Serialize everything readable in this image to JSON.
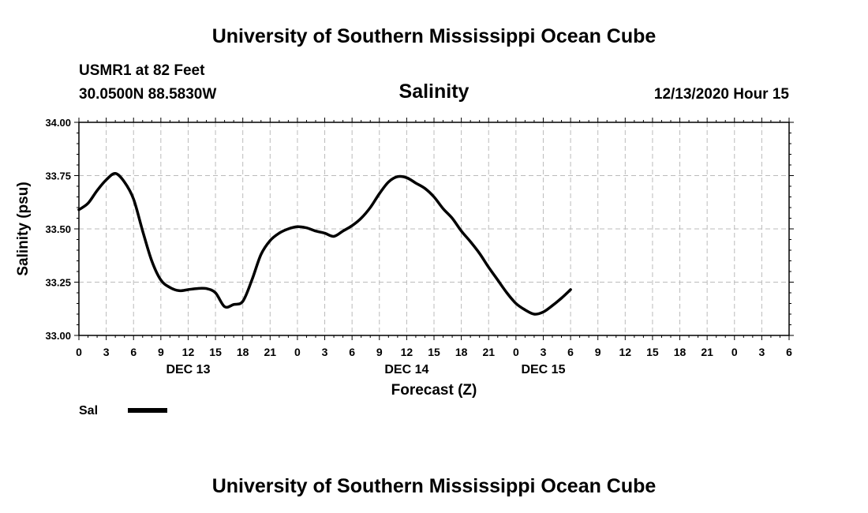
{
  "header": {
    "title_top": "University of Southern Mississippi Ocean Cube",
    "station": "USMR1 at 82 Feet",
    "coords": "30.0500N 88.5830W",
    "datetime": "12/13/2020 Hour 15"
  },
  "footer": {
    "title_bottom": "University of Southern Mississippi Ocean Cube"
  },
  "legend": {
    "label": "Sal"
  },
  "colors": {
    "line": "#000000",
    "grid": "#bbbbbb",
    "axis": "#000000"
  },
  "chart_data": {
    "type": "line",
    "title": "Salinity",
    "xlabel": "Forecast (Z)",
    "ylabel": "Salinity (psu)",
    "xlim": [
      0,
      78
    ],
    "ylim": [
      33.0,
      34.0
    ],
    "x_ticks": [
      0,
      3,
      6,
      9,
      12,
      15,
      18,
      21,
      24,
      27,
      30,
      33,
      36,
      39,
      42,
      45,
      48,
      51,
      54,
      57,
      60,
      63,
      66,
      69,
      72,
      75,
      78
    ],
    "x_tick_labels": [
      "0",
      "3",
      "6",
      "9",
      "12",
      "15",
      "18",
      "21",
      "0",
      "3",
      "6",
      "9",
      "12",
      "15",
      "18",
      "21",
      "0",
      "3",
      "6",
      "9",
      "12",
      "15",
      "18",
      "21",
      "0",
      "3",
      "6"
    ],
    "y_ticks": [
      33.0,
      33.25,
      33.5,
      33.75,
      34.0
    ],
    "y_tick_labels": [
      "33.00",
      "33.25",
      "33.50",
      "33.75",
      "34.00"
    ],
    "day_labels": [
      {
        "x": 12,
        "label": "DEC 13"
      },
      {
        "x": 36,
        "label": "DEC 14"
      },
      {
        "x": 51,
        "label": "DEC 15"
      }
    ],
    "grid": true,
    "series": [
      {
        "name": "Sal",
        "x": [
          0,
          1,
          2,
          3,
          4,
          5,
          6,
          7,
          8,
          9,
          10,
          11,
          12,
          13,
          14,
          15,
          16,
          17,
          18,
          19,
          20,
          21,
          22,
          23,
          24,
          25,
          26,
          27,
          28,
          29,
          30,
          31,
          32,
          33,
          34,
          35,
          36,
          37,
          38,
          39,
          40,
          41,
          42,
          43,
          44,
          45,
          46,
          47,
          48,
          49,
          50,
          51,
          52,
          53,
          54
        ],
        "values": [
          33.59,
          33.62,
          33.68,
          33.73,
          33.76,
          33.72,
          33.64,
          33.49,
          33.35,
          33.26,
          33.225,
          33.21,
          33.215,
          33.22,
          33.22,
          33.2,
          33.135,
          33.145,
          33.16,
          33.26,
          33.38,
          33.445,
          33.48,
          33.5,
          33.51,
          33.505,
          33.49,
          33.48,
          33.465,
          33.49,
          33.515,
          33.55,
          33.6,
          33.665,
          33.72,
          33.745,
          33.74,
          33.715,
          33.69,
          33.65,
          33.595,
          33.55,
          33.49,
          33.44,
          33.385,
          33.32,
          33.26,
          33.2,
          33.15,
          33.12,
          33.1,
          33.11,
          33.14,
          33.175,
          33.215
        ]
      }
    ]
  }
}
